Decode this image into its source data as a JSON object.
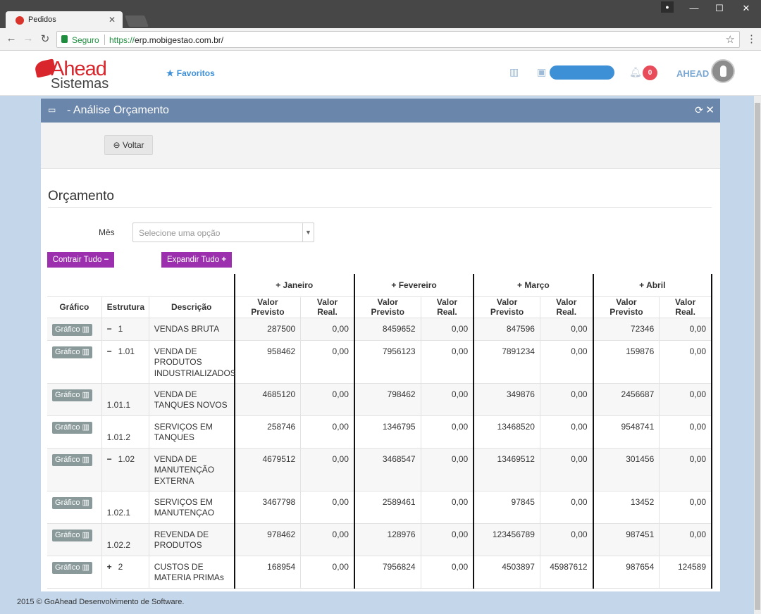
{
  "browser": {
    "tab_title": "Pedidos",
    "secure_label": "Seguro",
    "url_scheme": "https://",
    "url_host": "erp.mobigestao.com.br/"
  },
  "header": {
    "logo_main": "Ahead",
    "logo_sub": "Sistemas",
    "favoritos": "Favoritos",
    "notification_count": "0",
    "username": "AHEAD"
  },
  "panel": {
    "title": "- Análise Orçamento",
    "voltar_label": "Voltar",
    "section_title": "Orçamento",
    "mes_label": "Mês",
    "mes_placeholder": "Selecione uma opção",
    "contrair_label": "Contrair Tudo",
    "expandir_label": "Expandir Tudo"
  },
  "table": {
    "col_grafico": "Gráfico",
    "col_estrutura": "Estrutura",
    "col_descricao": "Descrição",
    "months": [
      "Janeiro",
      "Fevereiro",
      "Março",
      "Abril"
    ],
    "col_previsto": "Valor Previsto",
    "col_real": "Valor Real.",
    "grafico_btn": "Gráfico",
    "rows": [
      {
        "sign": "−",
        "code": "1",
        "desc": "VENDAS BRUTA",
        "v": [
          "287500",
          "0,00",
          "8459652",
          "0,00",
          "847596",
          "0,00",
          "72346",
          "0,00"
        ]
      },
      {
        "sign": "−",
        "code": "1.01",
        "desc": "VENDA DE PRODUTOS INDUSTRIALIZADOS",
        "v": [
          "958462",
          "0,00",
          "7956123",
          "0,00",
          "7891234",
          "0,00",
          "159876",
          "0,00"
        ]
      },
      {
        "sign": "",
        "code": "1.01.1",
        "desc": "VENDA DE TANQUES NOVOS",
        "v": [
          "4685120",
          "0,00",
          "798462",
          "0,00",
          "349876",
          "0,00",
          "2456687",
          "0,00"
        ]
      },
      {
        "sign": "",
        "code": "1.01.2",
        "desc": "SERVIÇOS EM TANQUES",
        "v": [
          "258746",
          "0,00",
          "1346795",
          "0,00",
          "13468520",
          "0,00",
          "9548741",
          "0,00"
        ]
      },
      {
        "sign": "−",
        "code": "1.02",
        "desc": "VENDA DE MANUTENÇÃO EXTERNA",
        "v": [
          "4679512",
          "0,00",
          "3468547",
          "0,00",
          "13469512",
          "0,00",
          "301456",
          "0,00"
        ]
      },
      {
        "sign": "",
        "code": "1.02.1",
        "desc": "SERVIÇOS EM MANUTENÇAO",
        "v": [
          "3467798",
          "0,00",
          "2589461",
          "0,00",
          "97845",
          "0,00",
          "13452",
          "0,00"
        ]
      },
      {
        "sign": "",
        "code": "1.02.2",
        "desc": "REVENDA DE PRODUTOS",
        "v": [
          "978462",
          "0,00",
          "128976",
          "0,00",
          "123456789",
          "0,00",
          "987451",
          "0,00"
        ]
      },
      {
        "sign": "+",
        "code": "2",
        "desc": "CUSTOS DE MATERIA PRIMAs",
        "v": [
          "168954",
          "0,00",
          "7956824",
          "0,00",
          "4503897",
          "45987612",
          "987654",
          "124589"
        ]
      }
    ]
  },
  "footer": "2015 © GoAhead Desenvolvimento de Software.",
  "colors": {
    "panel_header": "#6a86ab",
    "purple_button": "#9b2fae",
    "brand_red": "#d9262c",
    "link_blue": "#3d8fd6",
    "badge_red": "#e84b5a",
    "page_bg": "#c3d6ea"
  }
}
